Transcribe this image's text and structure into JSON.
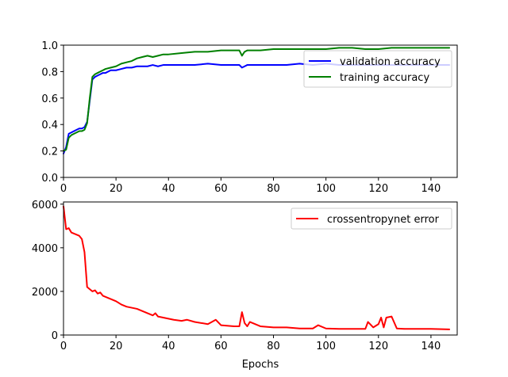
{
  "chart_data": [
    {
      "type": "line",
      "xlabel": "",
      "ylabel": "",
      "xlim": [
        0,
        150
      ],
      "ylim": [
        0.0,
        1.0
      ],
      "xticks": [
        0,
        20,
        40,
        60,
        80,
        100,
        120,
        140
      ],
      "yticks": [
        0.0,
        0.2,
        0.4,
        0.6,
        0.8,
        1.0
      ],
      "xtick_labels": [
        "0",
        "20",
        "40",
        "60",
        "80",
        "100",
        "120",
        "140"
      ],
      "ytick_labels": [
        "0.0",
        "0.2",
        "0.4",
        "0.6",
        "0.8",
        "1.0"
      ],
      "grid": false,
      "legend_position": "top-right",
      "series": [
        {
          "name": "validation accuracy",
          "color": "#0000ff",
          "x": [
            0,
            1,
            2,
            3,
            4,
            5,
            6,
            7,
            8,
            9,
            10,
            11,
            12,
            13,
            14,
            15,
            16,
            18,
            20,
            22,
            24,
            26,
            28,
            30,
            32,
            34,
            36,
            38,
            40,
            45,
            50,
            55,
            60,
            65,
            67,
            68,
            69,
            70,
            75,
            80,
            85,
            90,
            95,
            100,
            105,
            110,
            115,
            120,
            125,
            130,
            135,
            140,
            147
          ],
          "y": [
            0.18,
            0.23,
            0.33,
            0.34,
            0.35,
            0.36,
            0.37,
            0.37,
            0.38,
            0.42,
            0.58,
            0.74,
            0.76,
            0.77,
            0.78,
            0.79,
            0.79,
            0.81,
            0.81,
            0.82,
            0.83,
            0.83,
            0.84,
            0.84,
            0.84,
            0.85,
            0.84,
            0.85,
            0.85,
            0.85,
            0.85,
            0.86,
            0.85,
            0.85,
            0.85,
            0.83,
            0.84,
            0.85,
            0.85,
            0.85,
            0.85,
            0.86,
            0.85,
            0.86,
            0.85,
            0.85,
            0.85,
            0.85,
            0.85,
            0.85,
            0.85,
            0.85,
            0.85
          ]
        },
        {
          "name": "training accuracy",
          "color": "#008000",
          "x": [
            0,
            1,
            2,
            3,
            4,
            5,
            6,
            7,
            8,
            9,
            10,
            11,
            12,
            13,
            14,
            15,
            16,
            18,
            20,
            22,
            24,
            26,
            28,
            30,
            32,
            34,
            36,
            38,
            40,
            45,
            50,
            55,
            60,
            65,
            67,
            68,
            69,
            70,
            75,
            80,
            85,
            90,
            95,
            100,
            105,
            110,
            115,
            120,
            125,
            130,
            135,
            140,
            147
          ],
          "y": [
            0.2,
            0.21,
            0.3,
            0.32,
            0.33,
            0.34,
            0.35,
            0.35,
            0.36,
            0.41,
            0.6,
            0.76,
            0.78,
            0.79,
            0.8,
            0.81,
            0.82,
            0.83,
            0.84,
            0.86,
            0.87,
            0.88,
            0.9,
            0.91,
            0.92,
            0.91,
            0.92,
            0.93,
            0.93,
            0.94,
            0.95,
            0.95,
            0.96,
            0.96,
            0.96,
            0.92,
            0.95,
            0.96,
            0.96,
            0.97,
            0.97,
            0.97,
            0.97,
            0.97,
            0.98,
            0.98,
            0.97,
            0.97,
            0.98,
            0.98,
            0.98,
            0.98,
            0.98
          ]
        }
      ]
    },
    {
      "type": "line",
      "xlabel": "Epochs",
      "ylabel": "",
      "xlim": [
        0,
        150
      ],
      "ylim": [
        0,
        6100
      ],
      "xticks": [
        0,
        20,
        40,
        60,
        80,
        100,
        120,
        140
      ],
      "yticks": [
        0,
        2000,
        4000,
        6000
      ],
      "xtick_labels": [
        "0",
        "20",
        "40",
        "60",
        "80",
        "100",
        "120",
        "140"
      ],
      "ytick_labels": [
        "0",
        "2000",
        "4000",
        "6000"
      ],
      "grid": false,
      "legend_position": "top-right",
      "series": [
        {
          "name": "crossentropynet error",
          "color": "#ff0000",
          "x": [
            0,
            1,
            2,
            3,
            4,
            5,
            6,
            7,
            8,
            9,
            10,
            11,
            12,
            13,
            14,
            15,
            16,
            17,
            18,
            20,
            22,
            24,
            26,
            28,
            30,
            32,
            34,
            35,
            36,
            38,
            40,
            42,
            45,
            47,
            50,
            55,
            58,
            60,
            65,
            67,
            68,
            69,
            70,
            71,
            75,
            80,
            85,
            90,
            95,
            97,
            100,
            105,
            110,
            115,
            116,
            118,
            120,
            121,
            122,
            123,
            125,
            127,
            130,
            135,
            140,
            147
          ],
          "y": [
            5900,
            4850,
            4900,
            4700,
            4650,
            4600,
            4550,
            4400,
            3800,
            2200,
            2100,
            2000,
            2050,
            1900,
            1950,
            1800,
            1750,
            1700,
            1650,
            1550,
            1400,
            1300,
            1250,
            1200,
            1100,
            1000,
            900,
            1000,
            850,
            800,
            750,
            700,
            650,
            700,
            600,
            500,
            700,
            450,
            400,
            400,
            1050,
            550,
            400,
            600,
            400,
            350,
            350,
            300,
            300,
            450,
            300,
            280,
            280,
            280,
            600,
            350,
            500,
            800,
            350,
            800,
            850,
            300,
            280,
            280,
            280,
            260
          ]
        }
      ]
    }
  ]
}
